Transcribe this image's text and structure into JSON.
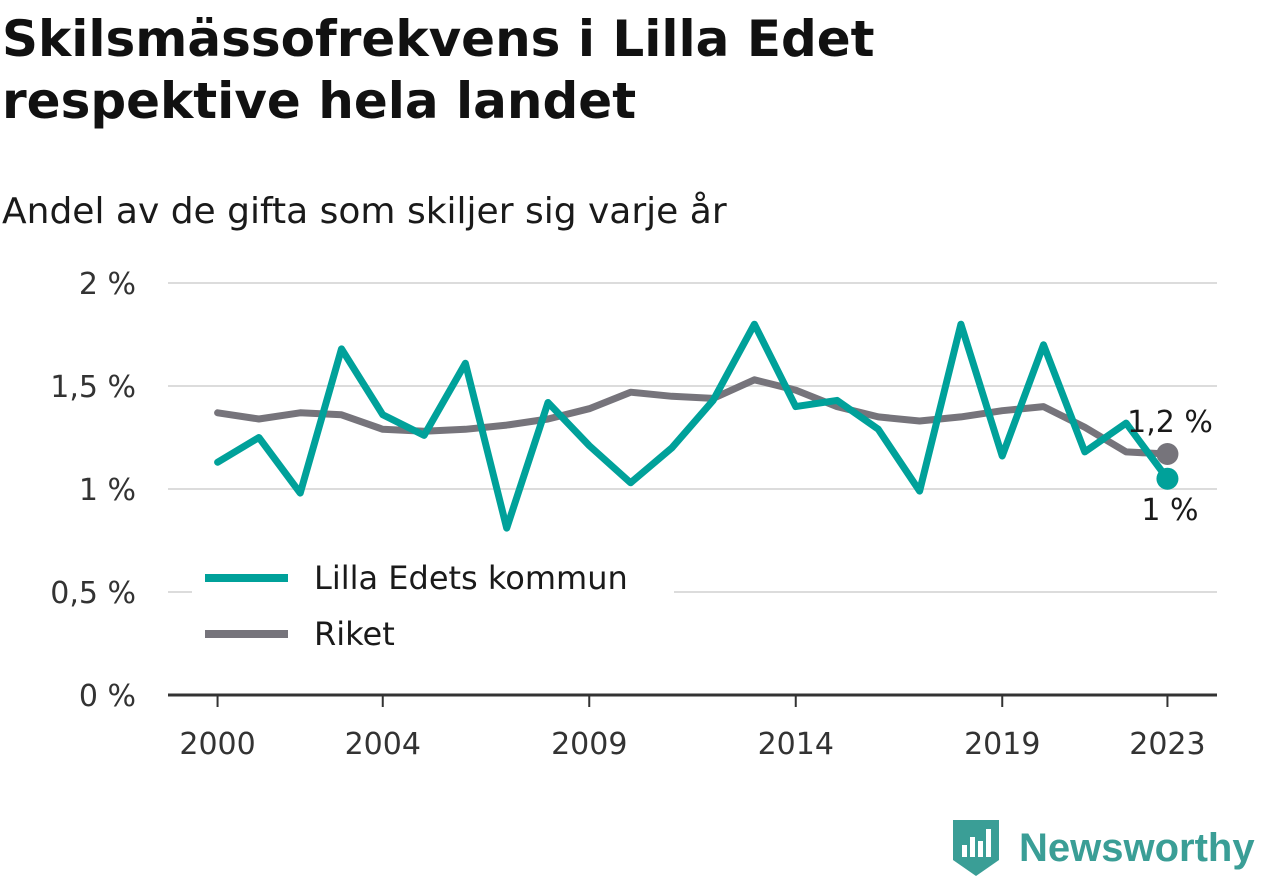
{
  "header": {
    "title": "Skilsmässofrekvens i Lilla Edet respektive hela landet",
    "subtitle": "Andel av de gifta som skiljer sig varje år"
  },
  "branding": {
    "name": "Newsworthy"
  },
  "colors": {
    "lilla_edet": "#00a19a",
    "riket": "#76747b",
    "grid": "#dcdcdc",
    "axis": "#333333",
    "brand": "#3a9e96"
  },
  "chart_data": {
    "type": "line",
    "x": [
      2000,
      2001,
      2002,
      2003,
      2004,
      2005,
      2006,
      2007,
      2008,
      2009,
      2010,
      2011,
      2012,
      2013,
      2014,
      2015,
      2016,
      2017,
      2018,
      2019,
      2020,
      2021,
      2022,
      2023
    ],
    "xticks": [
      2000,
      2004,
      2009,
      2014,
      2019,
      2023
    ],
    "xtick_labels": [
      "2000",
      "2004",
      "2009",
      "2014",
      "2019",
      "2023"
    ],
    "yticks": [
      0,
      0.5,
      1,
      1.5,
      2
    ],
    "ytick_labels": [
      "0 %",
      "0,5 %",
      "1 %",
      "1,5 %",
      "2 %"
    ],
    "ylim": [
      0,
      2
    ],
    "xlim": [
      1998.8,
      2024.2
    ],
    "grid": true,
    "legend_position": "lower-left",
    "series": [
      {
        "name": "Lilla Edets kommun",
        "color": "#00a19a",
        "values": [
          1.13,
          1.25,
          0.98,
          1.68,
          1.36,
          1.26,
          1.61,
          0.81,
          1.42,
          1.21,
          1.03,
          1.2,
          1.43,
          1.8,
          1.4,
          1.43,
          1.29,
          0.99,
          1.8,
          1.16,
          1.7,
          1.18,
          1.32,
          1.05
        ],
        "end_label": "1 %"
      },
      {
        "name": "Riket",
        "color": "#76747b",
        "values": [
          1.37,
          1.34,
          1.37,
          1.36,
          1.29,
          1.28,
          1.29,
          1.31,
          1.34,
          1.39,
          1.47,
          1.45,
          1.44,
          1.53,
          1.48,
          1.4,
          1.35,
          1.33,
          1.35,
          1.38,
          1.4,
          1.3,
          1.18,
          1.17
        ],
        "end_label": "1,2 %"
      }
    ]
  }
}
